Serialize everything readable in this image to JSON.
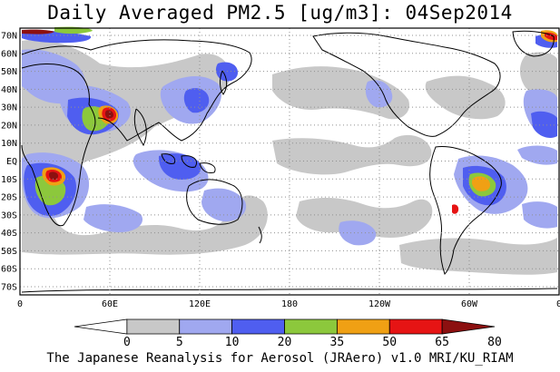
{
  "title": "Daily Averaged PM2.5 [ug/m3]: 04Sep2014",
  "footer": "The Japanese Reanalysis for Aerosol (JRAero) v1.0 MRI/KU_RIAM",
  "lat_labels": [
    "70N",
    "60N",
    "50N",
    "40N",
    "30N",
    "20N",
    "10N",
    "EQ",
    "10S",
    "20S",
    "30S",
    "40S",
    "50S",
    "60S",
    "70S"
  ],
  "lon_labels": [
    "0",
    "60E",
    "120E",
    "180",
    "120W",
    "60W",
    "0"
  ],
  "colorbar": {
    "levels": [
      "0",
      "5",
      "10",
      "20",
      "35",
      "50",
      "65",
      "80"
    ],
    "colors": [
      "#ffffff",
      "#c8c8c8",
      "#a0a8f0",
      "#4f5ef0",
      "#8cc83c",
      "#f0a014",
      "#e61414",
      "#8c1010"
    ]
  },
  "colors": {
    "land_outline": "#000000",
    "grid": "#909090",
    "low": "#c8c8c8",
    "light_blue": "#a0a8f0",
    "blue": "#4f5ef0",
    "green": "#8cc83c",
    "orange": "#f0a014",
    "red": "#e61414",
    "dark_red": "#8c1010"
  }
}
